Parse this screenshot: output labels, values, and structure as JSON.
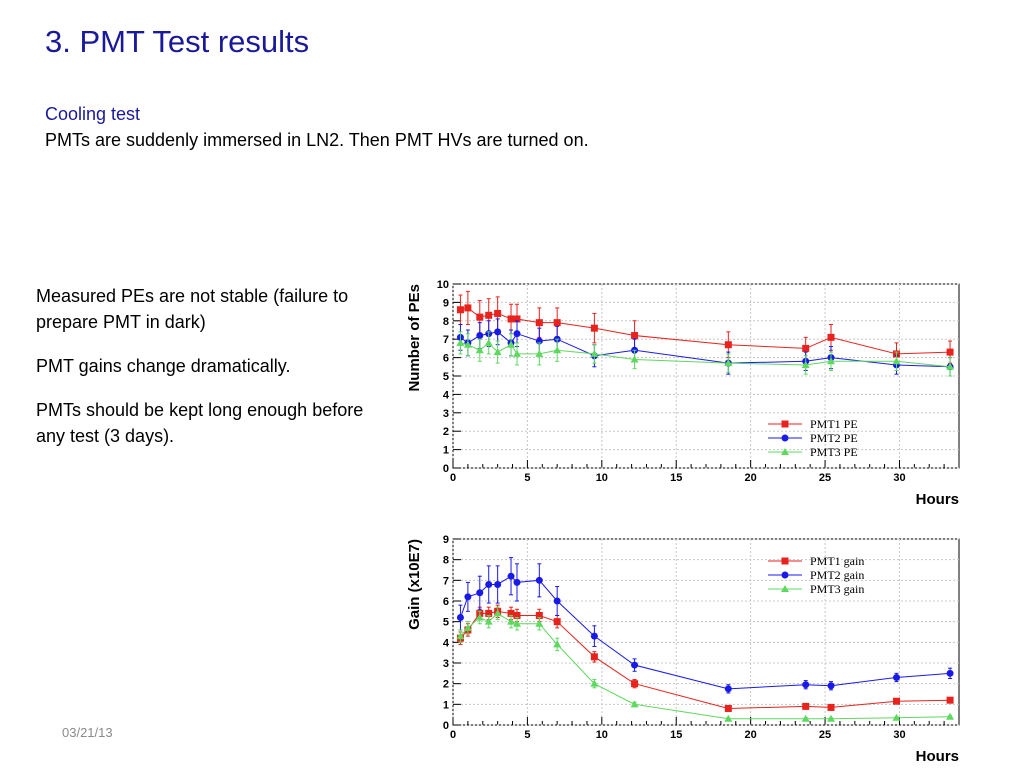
{
  "slide": {
    "title": "3. PMT Test results",
    "subtitle": "Cooling test",
    "description": "PMTs are suddenly immersed in LN2. Then PMT HVs are turned on.",
    "bullets": [
      "Measured PEs are not stable (failure to prepare PMT in dark)",
      "PMT gains change dramatically.",
      "PMTs should be kept long enough before any test (3 days)."
    ],
    "date": "03/21/13"
  },
  "chart_data": [
    {
      "type": "line",
      "xlabel": "Hours",
      "ylabel": "Number of PEs",
      "xlim": [
        0,
        34
      ],
      "ylim": [
        0,
        10
      ],
      "xticks": [
        0,
        5,
        10,
        15,
        20,
        25,
        30
      ],
      "yticks": [
        0,
        1,
        2,
        3,
        4,
        5,
        6,
        7,
        8,
        9,
        10
      ],
      "legend_position": "lower-right",
      "series": [
        {
          "name": "PMT1 PE",
          "color": "#e8231e",
          "marker": "square",
          "x": [
            0.5,
            1,
            1.8,
            2.4,
            3,
            3.9,
            4.3,
            5.8,
            7,
            9.5,
            12.2,
            18.5,
            23.7,
            25.4,
            29.8,
            33.4
          ],
          "y": [
            8.6,
            8.7,
            8.2,
            8.3,
            8.4,
            8.1,
            8.1,
            7.9,
            7.9,
            7.6,
            7.2,
            6.7,
            6.5,
            7.1,
            6.2,
            6.3
          ],
          "err": [
            0.8,
            0.9,
            0.9,
            0.9,
            0.9,
            0.8,
            0.8,
            0.8,
            0.8,
            0.8,
            0.8,
            0.7,
            0.6,
            0.7,
            0.6,
            0.6
          ]
        },
        {
          "name": "PMT2 PE",
          "color": "#1a1ae8",
          "marker": "circle",
          "x": [
            0.5,
            1,
            1.8,
            2.4,
            3,
            3.9,
            4.3,
            5.8,
            7,
            9.5,
            12.2,
            18.5,
            23.7,
            25.4,
            29.8,
            33.4
          ],
          "y": [
            7.1,
            6.8,
            7.2,
            7.3,
            7.4,
            6.8,
            7.3,
            6.9,
            7.0,
            6.1,
            6.4,
            5.7,
            5.8,
            6.0,
            5.6,
            5.5
          ],
          "err": [
            0.7,
            0.7,
            0.7,
            0.7,
            0.7,
            0.7,
            0.7,
            0.7,
            0.7,
            0.6,
            0.6,
            0.6,
            0.5,
            0.6,
            0.5,
            0.5
          ]
        },
        {
          "name": "PMT3 PE",
          "color": "#5fd85f",
          "marker": "triangle",
          "x": [
            0.5,
            1,
            1.8,
            2.4,
            3,
            3.9,
            4.3,
            5.8,
            7,
            9.5,
            12.2,
            18.5,
            23.7,
            25.4,
            29.8,
            33.4
          ],
          "y": [
            6.8,
            6.7,
            6.4,
            6.8,
            6.3,
            6.7,
            6.2,
            6.2,
            6.4,
            6.2,
            5.9,
            5.7,
            5.6,
            5.8,
            5.8,
            5.5
          ],
          "err": [
            0.6,
            0.6,
            0.6,
            0.6,
            0.6,
            0.6,
            0.6,
            0.6,
            0.6,
            0.5,
            0.5,
            0.5,
            0.5,
            0.5,
            0.5,
            0.5
          ]
        }
      ]
    },
    {
      "type": "line",
      "xlabel": "Hours",
      "ylabel": "Gain (x10E7)",
      "xlim": [
        0,
        34
      ],
      "ylim": [
        0,
        9
      ],
      "xticks": [
        0,
        5,
        10,
        15,
        20,
        25,
        30
      ],
      "yticks": [
        0,
        1,
        2,
        3,
        4,
        5,
        6,
        7,
        8,
        9
      ],
      "legend_position": "top-right",
      "series": [
        {
          "name": "PMT1 gain",
          "color": "#e8231e",
          "marker": "square",
          "x": [
            0.5,
            1,
            1.8,
            2.4,
            3,
            3.9,
            4.3,
            5.8,
            7,
            9.5,
            12.2,
            18.5,
            23.7,
            25.4,
            29.8,
            33.4
          ],
          "y": [
            4.2,
            4.6,
            5.4,
            5.4,
            5.5,
            5.4,
            5.3,
            5.3,
            5.0,
            3.3,
            2.0,
            0.8,
            0.9,
            0.85,
            1.15,
            1.2
          ],
          "err": [
            0.3,
            0.3,
            0.3,
            0.3,
            0.3,
            0.3,
            0.3,
            0.3,
            0.3,
            0.25,
            0.2,
            0.1,
            0.1,
            0.1,
            0.1,
            0.1
          ]
        },
        {
          "name": "PMT2 gain",
          "color": "#1a1ae8",
          "marker": "circle",
          "x": [
            0.5,
            1,
            1.8,
            2.4,
            3,
            3.9,
            4.3,
            5.8,
            7,
            9.5,
            12.2,
            18.5,
            23.7,
            25.4,
            29.8,
            33.4
          ],
          "y": [
            5.2,
            6.2,
            6.4,
            6.8,
            6.8,
            7.2,
            6.9,
            7.0,
            6.0,
            4.3,
            2.9,
            1.75,
            1.95,
            1.9,
            2.3,
            2.5
          ],
          "err": [
            0.6,
            0.7,
            0.8,
            0.9,
            0.9,
            0.9,
            0.9,
            0.8,
            0.7,
            0.5,
            0.3,
            0.2,
            0.2,
            0.2,
            0.2,
            0.25
          ]
        },
        {
          "name": "PMT3 gain",
          "color": "#5fd85f",
          "marker": "triangle",
          "x": [
            0.5,
            1,
            1.8,
            2.4,
            3,
            3.9,
            4.3,
            5.8,
            7,
            9.5,
            12.2,
            18.5,
            23.7,
            25.4,
            29.8,
            33.4
          ],
          "y": [
            4.3,
            4.7,
            5.2,
            5.0,
            5.4,
            5.0,
            4.9,
            4.9,
            3.9,
            2.0,
            1.0,
            0.3,
            0.3,
            0.3,
            0.35,
            0.4
          ],
          "err": [
            0.3,
            0.3,
            0.3,
            0.3,
            0.3,
            0.3,
            0.3,
            0.3,
            0.3,
            0.2,
            0.1,
            0.05,
            0.05,
            0.05,
            0.05,
            0.05
          ]
        }
      ]
    }
  ]
}
